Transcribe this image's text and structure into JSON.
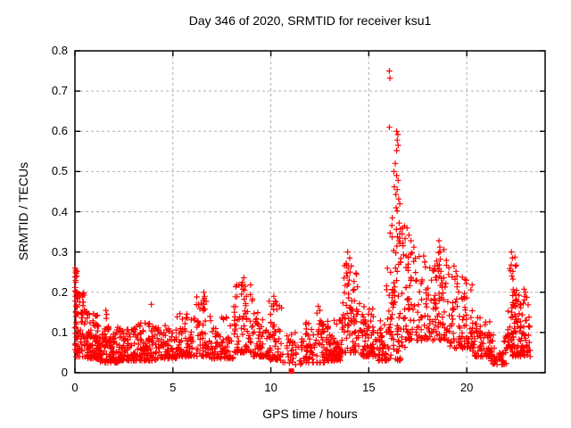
{
  "chart_data": {
    "type": "scatter",
    "title": "Day 346 of 2020, SRMTID for receiver ksu1",
    "xlabel": "GPS time / hours",
    "ylabel": "SRMTID / TECUs",
    "xlim": [
      0,
      24
    ],
    "ylim": [
      0,
      0.8
    ],
    "grid": true,
    "legend": "none",
    "marker": "plus",
    "marker_color": "#ff0000",
    "grid_color": "#b0b0b0",
    "xticks": [
      {
        "v": 0,
        "label": "0"
      },
      {
        "v": 5,
        "label": "5"
      },
      {
        "v": 10,
        "label": "10"
      },
      {
        "v": 15,
        "label": "15"
      },
      {
        "v": 20,
        "label": "20"
      }
    ],
    "yticks": [
      {
        "v": 0.0,
        "label": "0"
      },
      {
        "v": 0.1,
        "label": "0.1"
      },
      {
        "v": 0.2,
        "label": "0.2"
      },
      {
        "v": 0.3,
        "label": "0.3"
      },
      {
        "v": 0.4,
        "label": "0.4"
      },
      {
        "v": 0.5,
        "label": "0.5"
      },
      {
        "v": 0.6,
        "label": "0.6"
      },
      {
        "v": 0.7,
        "label": "0.7"
      },
      {
        "v": 0.8,
        "label": "0.8"
      }
    ],
    "outlier_points": [
      [
        0.02,
        0.26
      ],
      [
        0.03,
        0.25
      ],
      [
        0.02,
        0.238
      ],
      [
        0.04,
        0.225
      ],
      [
        0.02,
        0.212
      ],
      [
        0.05,
        0.2
      ],
      [
        0.03,
        0.19
      ],
      [
        0.02,
        0.178
      ],
      [
        0.06,
        0.165
      ],
      [
        0.04,
        0.152
      ],
      [
        0.05,
        0.14
      ],
      [
        1.58,
        0.155
      ],
      [
        1.62,
        0.145
      ],
      [
        1.6,
        0.135
      ],
      [
        3.9,
        0.17
      ],
      [
        6.58,
        0.2
      ],
      [
        6.62,
        0.19
      ],
      [
        6.55,
        0.18
      ],
      [
        6.6,
        0.17
      ],
      [
        8.62,
        0.236
      ],
      [
        8.55,
        0.225
      ],
      [
        8.7,
        0.215
      ],
      [
        8.65,
        0.205
      ],
      [
        8.5,
        0.195
      ],
      [
        8.75,
        0.19
      ],
      [
        10.15,
        0.19
      ],
      [
        10.22,
        0.178
      ],
      [
        10.3,
        0.168
      ],
      [
        12.42,
        0.165
      ],
      [
        12.5,
        0.155
      ],
      [
        12.35,
        0.148
      ],
      [
        13.92,
        0.3
      ],
      [
        14.02,
        0.285
      ],
      [
        13.85,
        0.272
      ],
      [
        13.95,
        0.26
      ],
      [
        14.05,
        0.25
      ],
      [
        13.9,
        0.24
      ],
      [
        14.0,
        0.23
      ],
      [
        13.95,
        0.22
      ],
      [
        16.05,
        0.75
      ],
      [
        16.08,
        0.732
      ],
      [
        16.05,
        0.61
      ],
      [
        16.42,
        0.6
      ],
      [
        16.48,
        0.592
      ],
      [
        16.45,
        0.578
      ],
      [
        16.5,
        0.565
      ],
      [
        16.42,
        0.552
      ],
      [
        16.35,
        0.52
      ],
      [
        16.28,
        0.5
      ],
      [
        16.42,
        0.49
      ],
      [
        16.5,
        0.478
      ],
      [
        16.3,
        0.462
      ],
      [
        16.45,
        0.455
      ],
      [
        16.38,
        0.443
      ],
      [
        16.52,
        0.432
      ],
      [
        16.58,
        0.42
      ],
      [
        16.4,
        0.41
      ],
      [
        16.45,
        0.402
      ],
      [
        16.2,
        0.385
      ],
      [
        16.55,
        0.372
      ],
      [
        16.62,
        0.358
      ],
      [
        16.7,
        0.345
      ],
      [
        16.85,
        0.333
      ],
      [
        16.95,
        0.36
      ],
      [
        17.05,
        0.342
      ],
      [
        17.15,
        0.328
      ],
      [
        17.3,
        0.312
      ],
      [
        17.8,
        0.29
      ],
      [
        17.85,
        0.275
      ],
      [
        18.58,
        0.328
      ],
      [
        18.62,
        0.312
      ],
      [
        18.57,
        0.298
      ],
      [
        18.65,
        0.282
      ],
      [
        18.6,
        0.268
      ],
      [
        18.68,
        0.252
      ],
      [
        18.62,
        0.24
      ],
      [
        19.35,
        0.265
      ],
      [
        19.45,
        0.252
      ],
      [
        19.5,
        0.24
      ],
      [
        19.4,
        0.232
      ],
      [
        22.28,
        0.3
      ],
      [
        22.33,
        0.285
      ],
      [
        22.27,
        0.268
      ],
      [
        22.36,
        0.252
      ],
      [
        22.3,
        0.24
      ],
      [
        23.0,
        0.2
      ],
      [
        22.95,
        0.19
      ]
    ],
    "special_points": [
      {
        "x": 11.05,
        "y": 0.004,
        "marker": "square"
      }
    ],
    "density_band_fields": [
      "x_start",
      "x_end",
      "y_low",
      "y_high",
      "count",
      "low_bias_exponent"
    ],
    "density_bands": [
      [
        0.0,
        0.15,
        0.05,
        0.26,
        28,
        1.2
      ],
      [
        0.05,
        0.6,
        0.04,
        0.2,
        60,
        2.0
      ],
      [
        0.6,
        1.2,
        0.035,
        0.15,
        85,
        2.1
      ],
      [
        1.2,
        2.2,
        0.025,
        0.12,
        110,
        2.0
      ],
      [
        2.2,
        3.2,
        0.03,
        0.115,
        100,
        2.0
      ],
      [
        3.2,
        4.2,
        0.03,
        0.125,
        90,
        2.0
      ],
      [
        4.2,
        5.2,
        0.035,
        0.12,
        80,
        2.0
      ],
      [
        5.2,
        6.2,
        0.04,
        0.15,
        80,
        2.0
      ],
      [
        6.2,
        6.8,
        0.04,
        0.19,
        50,
        1.9
      ],
      [
        6.8,
        8.1,
        0.035,
        0.14,
        90,
        2.0
      ],
      [
        8.1,
        9.1,
        0.05,
        0.22,
        80,
        1.8
      ],
      [
        9.1,
        9.9,
        0.04,
        0.15,
        60,
        2.0
      ],
      [
        9.9,
        10.6,
        0.03,
        0.18,
        55,
        1.8
      ],
      [
        10.6,
        11.7,
        0.02,
        0.1,
        45,
        1.8
      ],
      [
        11.7,
        12.9,
        0.025,
        0.13,
        90,
        1.9
      ],
      [
        12.9,
        13.6,
        0.03,
        0.14,
        75,
        1.9
      ],
      [
        13.6,
        14.6,
        0.05,
        0.27,
        85,
        1.8
      ],
      [
        14.6,
        15.3,
        0.04,
        0.17,
        70,
        1.9
      ],
      [
        15.3,
        15.9,
        0.03,
        0.13,
        45,
        1.9
      ],
      [
        15.9,
        16.85,
        0.1,
        0.38,
        65,
        1.3
      ],
      [
        15.9,
        16.85,
        0.03,
        0.12,
        35,
        1.5
      ],
      [
        16.85,
        18.4,
        0.08,
        0.3,
        115,
        1.9
      ],
      [
        18.4,
        19.1,
        0.08,
        0.32,
        60,
        1.7
      ],
      [
        19.1,
        20.3,
        0.06,
        0.24,
        90,
        1.9
      ],
      [
        20.3,
        21.2,
        0.04,
        0.16,
        65,
        2.0
      ],
      [
        21.2,
        22.1,
        0.02,
        0.1,
        55,
        1.8
      ],
      [
        22.1,
        22.55,
        0.06,
        0.3,
        40,
        1.4
      ],
      [
        22.3,
        23.25,
        0.04,
        0.21,
        95,
        1.7
      ]
    ],
    "seed": 7
  }
}
